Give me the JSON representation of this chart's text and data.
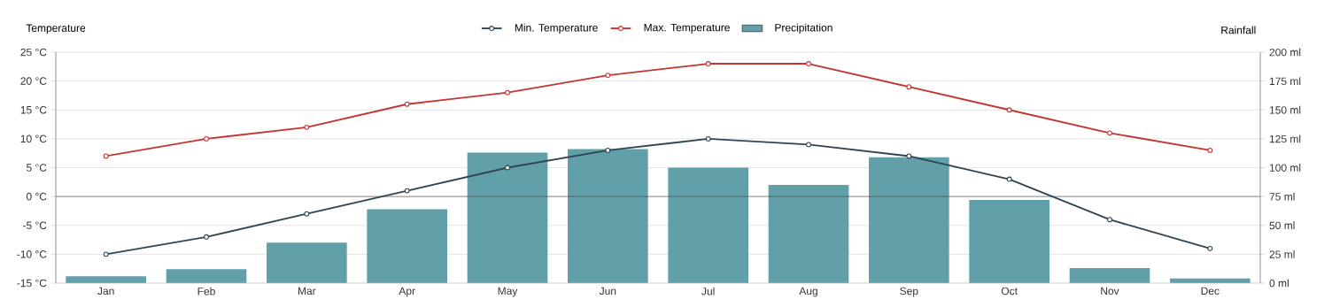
{
  "chart_data": {
    "type": "bar",
    "categories": [
      "Jan",
      "Feb",
      "Mar",
      "Apr",
      "May",
      "Jun",
      "Jul",
      "Aug",
      "Sep",
      "Oct",
      "Nov",
      "Dec"
    ],
    "series": [
      {
        "name": "Min. Temperature",
        "type": "line",
        "color": "#2f4554",
        "values": [
          -10,
          -7,
          -3,
          1,
          5,
          8,
          10,
          9,
          7,
          3,
          -4,
          -9
        ]
      },
      {
        "name": "Max. Temperature",
        "type": "line",
        "color": "#c23531",
        "values": [
          7,
          10,
          12,
          16,
          18,
          21,
          23,
          23,
          19,
          15,
          11,
          8
        ]
      },
      {
        "name": "Precipitation",
        "axis": "y2",
        "color": "#61a0a8",
        "values": [
          6,
          12,
          35,
          64,
          113,
          116,
          100,
          85,
          109,
          72,
          13,
          4
        ]
      }
    ],
    "ylabel": "Temperature",
    "y2label": "Rainfall",
    "ylim": [
      -15,
      25
    ],
    "yticks": [
      {
        "value": -15,
        "label": "-15 °C"
      },
      {
        "value": -10,
        "label": "-10 °C"
      },
      {
        "value": -5,
        "label": "-5 °C"
      },
      {
        "value": 0,
        "label": "0 °C"
      },
      {
        "value": 5,
        "label": "5 °C"
      },
      {
        "value": 10,
        "label": "10 °C"
      },
      {
        "value": 15,
        "label": "15 °C"
      },
      {
        "value": 20,
        "label": "20 °C"
      },
      {
        "value": 25,
        "label": "25 °C"
      }
    ],
    "y2lim": [
      0,
      200
    ],
    "y2ticks": [
      {
        "value": 0,
        "label": "0 ml"
      },
      {
        "value": 25,
        "label": "25 ml"
      },
      {
        "value": 50,
        "label": "50 ml"
      },
      {
        "value": 75,
        "label": "75 ml"
      },
      {
        "value": 100,
        "label": "100 ml"
      },
      {
        "value": 125,
        "label": "125 ml"
      },
      {
        "value": 150,
        "label": "150 ml"
      },
      {
        "value": 175,
        "label": "175 ml"
      },
      {
        "value": 200,
        "label": "200 ml"
      }
    ],
    "grid": "y",
    "legend": "top",
    "marker": "circle"
  }
}
